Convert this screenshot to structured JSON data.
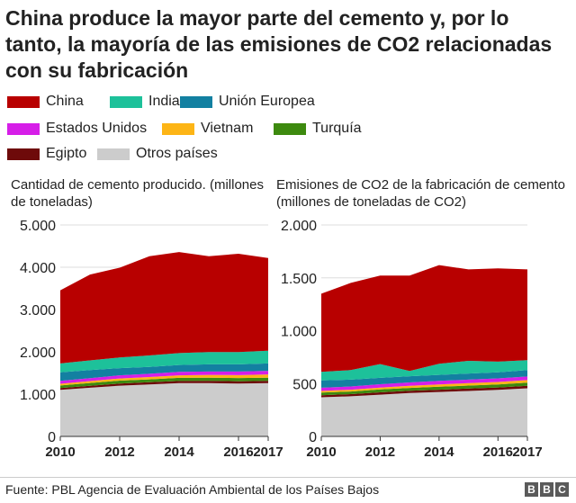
{
  "title": "China produce la mayor parte del cemento y, por lo tanto, la mayoría de las emisiones de CO2 relacionadas con su fabricación",
  "legend": [
    {
      "label": "China",
      "color": "#b80000"
    },
    {
      "label": "India",
      "color": "#1dc19a"
    },
    {
      "label": "Unión Europea",
      "color": "#1380a1"
    },
    {
      "label": "Estados Unidos",
      "color": "#d61ee8"
    },
    {
      "label": "Vietnam",
      "color": "#fdb516"
    },
    {
      "label": "Turquía",
      "color": "#3d8a0f"
    },
    {
      "label": "Egipto",
      "color": "#6e0a0a"
    },
    {
      "label": "Otros países",
      "color": "#cccccc"
    }
  ],
  "source": "Fuente: PBL Agencia de Evaluación Ambiental de los Países Bajos",
  "logo": [
    "B",
    "B",
    "C"
  ],
  "chart_data": [
    {
      "type": "area",
      "stacked": true,
      "title": "Cantidad de cemento producido. (millones de toneladas)",
      "x": [
        2010,
        2011,
        2012,
        2013,
        2014,
        2015,
        2016,
        2017
      ],
      "xticks": [
        "2010",
        "2012",
        "2014",
        "2016",
        "2017"
      ],
      "xtick_values": [
        2010,
        2012,
        2014,
        2016,
        2017
      ],
      "ylim": [
        0,
        5000
      ],
      "yticks": [
        0,
        1000,
        2000,
        3000,
        4000,
        5000
      ],
      "ytick_labels": [
        "0",
        "1.000",
        "2.000",
        "3.000",
        "4.000",
        "5.000"
      ],
      "grid": true,
      "series": [
        {
          "name": "Otros países",
          "values": [
            1100,
            1150,
            1200,
            1230,
            1260,
            1260,
            1250,
            1260
          ]
        },
        {
          "name": "Egipto",
          "values": [
            45,
            48,
            50,
            50,
            50,
            55,
            55,
            55
          ]
        },
        {
          "name": "Turquía",
          "values": [
            60,
            65,
            70,
            70,
            75,
            75,
            75,
            75
          ]
        },
        {
          "name": "Vietnam",
          "values": [
            40,
            45,
            50,
            55,
            60,
            65,
            70,
            75
          ]
        },
        {
          "name": "Estados Unidos",
          "values": [
            70,
            70,
            75,
            75,
            80,
            80,
            85,
            85
          ]
        },
        {
          "name": "Unión Europea",
          "values": [
            200,
            190,
            170,
            165,
            165,
            170,
            170,
            175
          ]
        },
        {
          "name": "India",
          "values": [
            210,
            230,
            250,
            270,
            280,
            290,
            290,
            300
          ]
        },
        {
          "name": "China",
          "values": [
            1730,
            2030,
            2125,
            2345,
            2390,
            2265,
            2325,
            2195
          ]
        }
      ]
    },
    {
      "type": "area",
      "stacked": true,
      "title": "Emisiones de CO2 de la fabricación de cemento (millones de toneladas de CO2)",
      "x": [
        2010,
        2011,
        2012,
        2013,
        2014,
        2015,
        2016,
        2017
      ],
      "xticks": [
        "2010",
        "2012",
        "2014",
        "2016",
        "2017"
      ],
      "xtick_values": [
        2010,
        2012,
        2014,
        2016,
        2017
      ],
      "ylim": [
        0,
        2000
      ],
      "yticks": [
        0,
        500,
        1000,
        1500,
        2000
      ],
      "ytick_labels": [
        "0",
        "500",
        "1.000",
        "1.500",
        "2.000"
      ],
      "grid": true,
      "series": [
        {
          "name": "Otros países",
          "values": [
            370,
            380,
            395,
            410,
            420,
            430,
            440,
            455
          ]
        },
        {
          "name": "Egipto",
          "values": [
            20,
            20,
            22,
            22,
            22,
            23,
            23,
            23
          ]
        },
        {
          "name": "Turquía",
          "values": [
            25,
            25,
            27,
            27,
            28,
            28,
            28,
            30
          ]
        },
        {
          "name": "Vietnam",
          "values": [
            15,
            17,
            18,
            20,
            22,
            23,
            24,
            25
          ]
        },
        {
          "name": "Estados Unidos",
          "values": [
            30,
            30,
            32,
            32,
            33,
            33,
            34,
            34
          ]
        },
        {
          "name": "Unión Europea",
          "values": [
            70,
            65,
            60,
            58,
            57,
            58,
            58,
            60
          ]
        },
        {
          "name": "India",
          "values": [
            80,
            90,
            130,
            50,
            105,
            120,
            100,
            95
          ]
        },
        {
          "name": "China",
          "values": [
            740,
            825,
            838,
            903,
            933,
            865,
            883,
            858
          ]
        }
      ]
    }
  ]
}
